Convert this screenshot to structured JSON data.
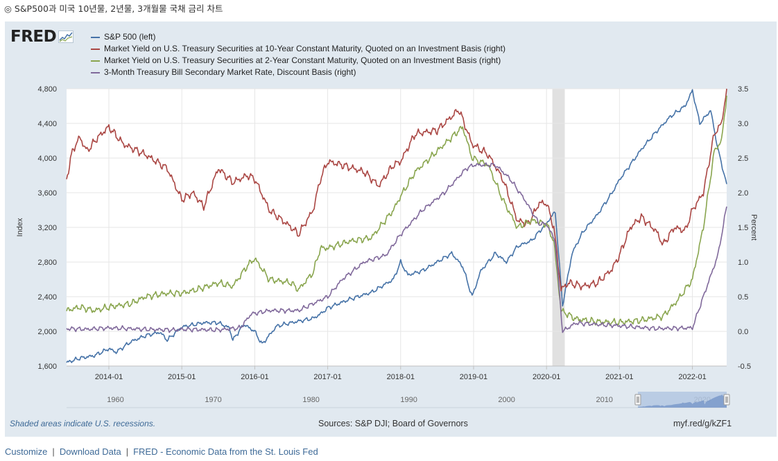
{
  "caption": "◎ S&P500과 미국 10년물, 2년물, 3개월물 국채 금리 차트",
  "logo": {
    "text": "FRED",
    "icon": "fred-sparkline-icon"
  },
  "legend": [
    {
      "label": "S&P 500 (left)",
      "color": "#4572a7"
    },
    {
      "label": "Market Yield on U.S. Treasury Securities at 10-Year Constant Maturity, Quoted on an Investment Basis (right)",
      "color": "#aa4643"
    },
    {
      "label": "Market Yield on U.S. Treasury Securities at 2-Year Constant Maturity, Quoted on an Investment Basis (right)",
      "color": "#89a54e"
    },
    {
      "label": "3-Month Treasury Bill Secondary Market Rate, Discount Basis (right)",
      "color": "#80699b"
    }
  ],
  "chart_data": {
    "type": "line",
    "ylabel_left": "Index",
    "ylabel_right": "Percent",
    "ylim_left": [
      1600,
      4800
    ],
    "ylim_right": [
      -0.5,
      3.5
    ],
    "yticks_left": [
      "1,600",
      "2,000",
      "2,400",
      "2,800",
      "3,200",
      "3,600",
      "4,000",
      "4,400",
      "4,800"
    ],
    "yticks_right": [
      "-0.5",
      "0.0",
      "0.5",
      "1.0",
      "1.5",
      "2.0",
      "2.5",
      "3.0",
      "3.5"
    ],
    "xlim": [
      2013.42,
      2022.47
    ],
    "xticks": [
      "2014-01",
      "2015-01",
      "2016-01",
      "2017-01",
      "2018-01",
      "2019-01",
      "2020-01",
      "2021-01",
      "2022-01"
    ],
    "recession": {
      "start": 2020.08,
      "end": 2020.25
    },
    "grid": true,
    "series": [
      {
        "name": "S&P 500 (left)",
        "axis": "left",
        "color": "#4572a7",
        "points": [
          [
            2013.42,
            1640
          ],
          [
            2013.6,
            1690
          ],
          [
            2013.8,
            1720
          ],
          [
            2014.0,
            1800
          ],
          [
            2014.1,
            1760
          ],
          [
            2014.3,
            1880
          ],
          [
            2014.5,
            1950
          ],
          [
            2014.7,
            1990
          ],
          [
            2014.8,
            1900
          ],
          [
            2015.0,
            2050
          ],
          [
            2015.3,
            2100
          ],
          [
            2015.5,
            2100
          ],
          [
            2015.65,
            2040
          ],
          [
            2015.7,
            1900
          ],
          [
            2015.85,
            2080
          ],
          [
            2016.0,
            2000
          ],
          [
            2016.1,
            1850
          ],
          [
            2016.3,
            2060
          ],
          [
            2016.5,
            2100
          ],
          [
            2016.8,
            2150
          ],
          [
            2016.9,
            2200
          ],
          [
            2017.0,
            2270
          ],
          [
            2017.3,
            2370
          ],
          [
            2017.6,
            2450
          ],
          [
            2017.9,
            2600
          ],
          [
            2018.0,
            2800
          ],
          [
            2018.1,
            2650
          ],
          [
            2018.3,
            2700
          ],
          [
            2018.5,
            2800
          ],
          [
            2018.7,
            2900
          ],
          [
            2018.85,
            2750
          ],
          [
            2018.98,
            2400
          ],
          [
            2019.1,
            2700
          ],
          [
            2019.3,
            2900
          ],
          [
            2019.45,
            2800
          ],
          [
            2019.6,
            2980
          ],
          [
            2019.8,
            3050
          ],
          [
            2020.0,
            3250
          ],
          [
            2020.12,
            3380
          ],
          [
            2020.22,
            2300
          ],
          [
            2020.35,
            2900
          ],
          [
            2020.5,
            3150
          ],
          [
            2020.7,
            3350
          ],
          [
            2020.9,
            3600
          ],
          [
            2021.0,
            3750
          ],
          [
            2021.3,
            4100
          ],
          [
            2021.5,
            4300
          ],
          [
            2021.7,
            4480
          ],
          [
            2021.9,
            4600
          ],
          [
            2022.0,
            4780
          ],
          [
            2022.1,
            4400
          ],
          [
            2022.25,
            4550
          ],
          [
            2022.35,
            4100
          ],
          [
            2022.47,
            3700
          ]
        ]
      },
      {
        "name": "Market Yield on U.S. Treasury Securities at 10-Year Constant Maturity, Quoted on an Investment Basis (right)",
        "axis": "right",
        "color": "#aa4643",
        "points": [
          [
            2013.42,
            2.2
          ],
          [
            2013.5,
            2.6
          ],
          [
            2013.6,
            2.8
          ],
          [
            2013.7,
            2.6
          ],
          [
            2013.85,
            2.8
          ],
          [
            2014.0,
            2.95
          ],
          [
            2014.2,
            2.7
          ],
          [
            2014.5,
            2.55
          ],
          [
            2014.8,
            2.35
          ],
          [
            2015.0,
            1.9
          ],
          [
            2015.15,
            2.0
          ],
          [
            2015.3,
            1.8
          ],
          [
            2015.5,
            2.35
          ],
          [
            2015.7,
            2.15
          ],
          [
            2015.9,
            2.25
          ],
          [
            2016.0,
            2.2
          ],
          [
            2016.2,
            1.75
          ],
          [
            2016.5,
            1.5
          ],
          [
            2016.6,
            1.4
          ],
          [
            2016.8,
            1.75
          ],
          [
            2016.9,
            2.2
          ],
          [
            2017.0,
            2.45
          ],
          [
            2017.2,
            2.4
          ],
          [
            2017.5,
            2.3
          ],
          [
            2017.7,
            2.1
          ],
          [
            2017.9,
            2.4
          ],
          [
            2018.0,
            2.45
          ],
          [
            2018.2,
            2.85
          ],
          [
            2018.5,
            2.9
          ],
          [
            2018.7,
            3.1
          ],
          [
            2018.8,
            3.2
          ],
          [
            2018.98,
            2.7
          ],
          [
            2019.2,
            2.55
          ],
          [
            2019.4,
            2.2
          ],
          [
            2019.6,
            1.6
          ],
          [
            2019.75,
            1.55
          ],
          [
            2019.9,
            1.85
          ],
          [
            2020.0,
            1.85
          ],
          [
            2020.1,
            1.5
          ],
          [
            2020.2,
            0.6
          ],
          [
            2020.3,
            0.7
          ],
          [
            2020.5,
            0.65
          ],
          [
            2020.7,
            0.7
          ],
          [
            2020.9,
            0.9
          ],
          [
            2021.0,
            1.1
          ],
          [
            2021.15,
            1.5
          ],
          [
            2021.3,
            1.65
          ],
          [
            2021.5,
            1.45
          ],
          [
            2021.6,
            1.25
          ],
          [
            2021.75,
            1.5
          ],
          [
            2021.9,
            1.45
          ],
          [
            2022.0,
            1.75
          ],
          [
            2022.15,
            2.0
          ],
          [
            2022.3,
            2.85
          ],
          [
            2022.4,
            3.0
          ],
          [
            2022.47,
            3.5
          ]
        ]
      },
      {
        "name": "Market Yield on U.S. Treasury Securities at 2-Year Constant Maturity, Quoted on an Investment Basis (right)",
        "axis": "right",
        "color": "#89a54e",
        "points": [
          [
            2013.42,
            0.3
          ],
          [
            2013.6,
            0.35
          ],
          [
            2013.8,
            0.3
          ],
          [
            2014.0,
            0.35
          ],
          [
            2014.3,
            0.4
          ],
          [
            2014.5,
            0.5
          ],
          [
            2014.8,
            0.55
          ],
          [
            2015.0,
            0.55
          ],
          [
            2015.2,
            0.6
          ],
          [
            2015.5,
            0.7
          ],
          [
            2015.7,
            0.65
          ],
          [
            2015.9,
            0.95
          ],
          [
            2016.0,
            1.05
          ],
          [
            2016.2,
            0.75
          ],
          [
            2016.5,
            0.7
          ],
          [
            2016.6,
            0.6
          ],
          [
            2016.8,
            0.85
          ],
          [
            2016.9,
            1.2
          ],
          [
            2017.0,
            1.2
          ],
          [
            2017.3,
            1.3
          ],
          [
            2017.6,
            1.35
          ],
          [
            2017.9,
            1.75
          ],
          [
            2018.0,
            1.95
          ],
          [
            2018.2,
            2.3
          ],
          [
            2018.5,
            2.6
          ],
          [
            2018.7,
            2.8
          ],
          [
            2018.85,
            2.95
          ],
          [
            2018.98,
            2.5
          ],
          [
            2019.2,
            2.4
          ],
          [
            2019.4,
            1.9
          ],
          [
            2019.6,
            1.5
          ],
          [
            2019.8,
            1.6
          ],
          [
            2020.0,
            1.55
          ],
          [
            2020.1,
            1.3
          ],
          [
            2020.2,
            0.3
          ],
          [
            2020.4,
            0.18
          ],
          [
            2020.7,
            0.14
          ],
          [
            2020.9,
            0.13
          ],
          [
            2021.0,
            0.13
          ],
          [
            2021.3,
            0.16
          ],
          [
            2021.6,
            0.22
          ],
          [
            2021.8,
            0.45
          ],
          [
            2022.0,
            0.75
          ],
          [
            2022.15,
            1.5
          ],
          [
            2022.3,
            2.6
          ],
          [
            2022.4,
            2.75
          ],
          [
            2022.47,
            3.4
          ]
        ]
      },
      {
        "name": "3-Month Treasury Bill Secondary Market Rate, Discount Basis (right)",
        "axis": "right",
        "color": "#80699b",
        "points": [
          [
            2013.42,
            0.04
          ],
          [
            2013.7,
            0.03
          ],
          [
            2014.0,
            0.05
          ],
          [
            2014.5,
            0.03
          ],
          [
            2014.9,
            0.02
          ],
          [
            2015.0,
            0.03
          ],
          [
            2015.5,
            0.02
          ],
          [
            2015.8,
            0.05
          ],
          [
            2015.95,
            0.25
          ],
          [
            2016.2,
            0.3
          ],
          [
            2016.6,
            0.3
          ],
          [
            2016.9,
            0.45
          ],
          [
            2017.0,
            0.5
          ],
          [
            2017.2,
            0.75
          ],
          [
            2017.5,
            1.0
          ],
          [
            2017.8,
            1.1
          ],
          [
            2018.0,
            1.4
          ],
          [
            2018.3,
            1.75
          ],
          [
            2018.6,
            2.0
          ],
          [
            2018.9,
            2.35
          ],
          [
            2019.0,
            2.4
          ],
          [
            2019.3,
            2.4
          ],
          [
            2019.5,
            2.2
          ],
          [
            2019.7,
            1.9
          ],
          [
            2019.9,
            1.55
          ],
          [
            2020.0,
            1.55
          ],
          [
            2020.12,
            1.3
          ],
          [
            2020.22,
            0.0
          ],
          [
            2020.4,
            0.12
          ],
          [
            2020.7,
            0.1
          ],
          [
            2021.0,
            0.08
          ],
          [
            2021.5,
            0.04
          ],
          [
            2022.0,
            0.05
          ],
          [
            2022.1,
            0.35
          ],
          [
            2022.25,
            0.8
          ],
          [
            2022.35,
            1.1
          ],
          [
            2022.47,
            1.8
          ]
        ]
      }
    ],
    "navigator": {
      "xticks": [
        "1960",
        "1970",
        "1980",
        "1990",
        "2000",
        "2010",
        "2020"
      ]
    }
  },
  "footer": {
    "note": "Shaded areas indicate U.S. recessions.",
    "sources": "Sources: S&P DJI; Board of Governors",
    "short_link": "myf.red/g/kZF1"
  },
  "links": {
    "customize": "Customize",
    "download": "Download Data",
    "fred": "FRED - Economic Data from the St. Louis Fed",
    "separator": "|"
  }
}
